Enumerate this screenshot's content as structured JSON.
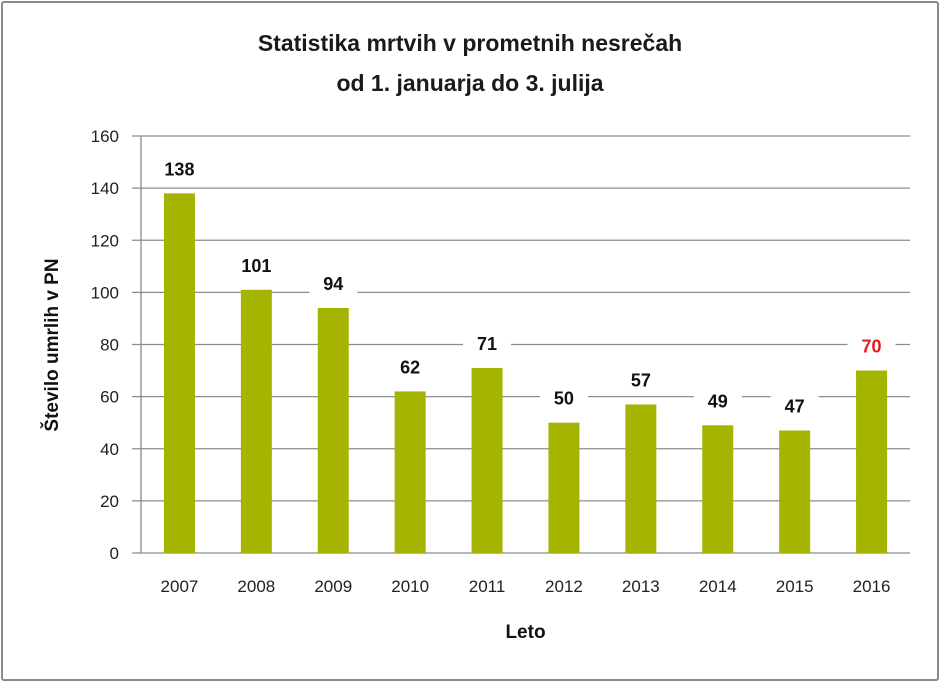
{
  "chart_data": {
    "type": "bar",
    "title": [
      "Statistika mrtvih v prometnih nesrečah",
      "od 1. januarja  do 3. julija"
    ],
    "xlabel": "Leto",
    "ylabel": "Število umrlih v PN",
    "categories": [
      "2007",
      "2008",
      "2009",
      "2010",
      "2011",
      "2012",
      "2013",
      "2014",
      "2015",
      "2016"
    ],
    "values": [
      138,
      101,
      94,
      62,
      71,
      50,
      57,
      49,
      47,
      70
    ],
    "ylim": [
      0,
      160
    ],
    "yticks": [
      0,
      20,
      40,
      60,
      80,
      100,
      120,
      140,
      160
    ],
    "grid": true,
    "legend": "none",
    "bar_color": "#a5b400",
    "label_color": "#111111",
    "highlight_label_color": "#e31b1b",
    "highlight_index": 9
  }
}
